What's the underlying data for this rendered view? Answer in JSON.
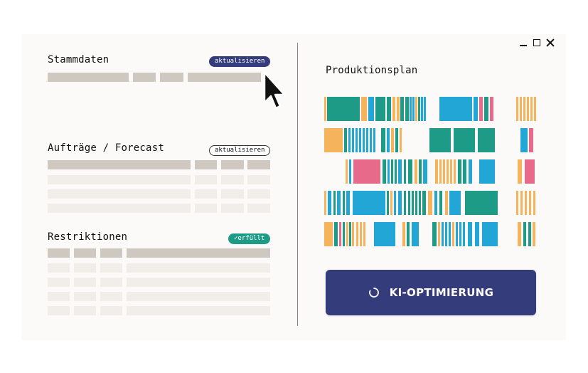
{
  "stammdaten": {
    "title": "Stammdaten",
    "button": "aktualisieren"
  },
  "auftraege": {
    "title": "Aufträge / Forecast",
    "button": "aktualisieren"
  },
  "restriktionen": {
    "title": "Restriktionen",
    "badge_check": "✓",
    "badge": "erfüllt"
  },
  "plan": {
    "title": "Produktionsplan"
  },
  "ki_button": {
    "label": "KI-OPTIMIERUNG"
  },
  "colors": {
    "teal": "#1e9b86",
    "blue": "#22a6d6",
    "orange": "#f5b45c",
    "pink": "#e76a8a",
    "navy": "#343c7c",
    "table_header": "#cfc8c0",
    "table_row": "#f1eeea"
  },
  "icons": {
    "cursor": "mouse-pointer-icon",
    "spinner": "loading-spinner-icon",
    "check": "check-icon",
    "minimize": "minimize-icon",
    "maximize": "maximize-icon",
    "close": "close-icon"
  }
}
